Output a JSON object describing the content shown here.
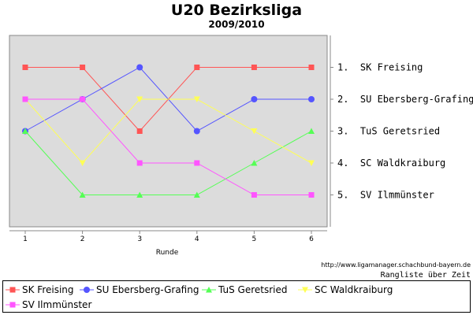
{
  "chart_data": {
    "type": "line",
    "title": "U20 Bezirksliga",
    "subtitle": "2009/2010",
    "xlabel": "Runde",
    "x": [
      1,
      2,
      3,
      4,
      5,
      6
    ],
    "ylim": [
      0,
      6
    ],
    "y_inverted": true,
    "y_tick_labels": [
      "1.  SK Freising",
      "2.  SU Ebersberg-Grafing",
      "3.  TuS Geretsried",
      "4.  SC Waldkraiburg",
      "5.  SV Ilmmünster"
    ],
    "grid": false,
    "legend_position": "bottom",
    "series": [
      {
        "name": "SK Freising",
        "color": "#ff5555",
        "marker": "square",
        "values": [
          1,
          1,
          3,
          1,
          1,
          1
        ]
      },
      {
        "name": "SU Ebersberg-Grafing",
        "color": "#5555ff",
        "marker": "circle",
        "values": [
          3,
          2,
          1,
          3,
          2,
          2
        ]
      },
      {
        "name": "TuS Geretsried",
        "color": "#55ff55",
        "marker": "triangle",
        "values": [
          3,
          5,
          5,
          5,
          4,
          3
        ]
      },
      {
        "name": "SC Waldkraiburg",
        "color": "#ffff55",
        "marker": "triangle-down",
        "values": [
          2,
          4,
          2,
          2,
          3,
          4
        ]
      },
      {
        "name": "SV Ilmmünster",
        "color": "#ff55ff",
        "marker": "square",
        "values": [
          2,
          2,
          4,
          4,
          5,
          5
        ]
      }
    ]
  },
  "footer": {
    "source_url": "http://www.ligamanager.schachbund-bayern.de",
    "caption": "Rangliste über Zeit"
  }
}
